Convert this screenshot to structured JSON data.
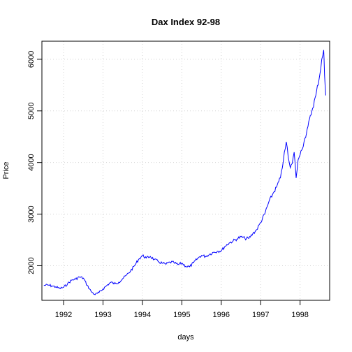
{
  "chart_data": {
    "type": "line",
    "title": "Dax Index 92-98",
    "xlabel": "days",
    "ylabel": "Price",
    "xlim": [
      1991.45,
      1998.75
    ],
    "ylim": [
      1330,
      6350
    ],
    "x_ticks": [
      1992,
      1993,
      1994,
      1995,
      1996,
      1997,
      1998
    ],
    "x_tick_labels": [
      "1992",
      "1993",
      "1994",
      "1995",
      "1996",
      "1997",
      "1998"
    ],
    "y_ticks": [
      2000,
      3000,
      4000,
      5000,
      6000
    ],
    "y_tick_labels": [
      "2000",
      "3000",
      "4000",
      "5000",
      "6000"
    ],
    "grid": true,
    "colors": {
      "line": "#0000ff",
      "grid": "#d3d3d3",
      "axis": "#000000"
    },
    "series": [
      {
        "x": [
          1991.5,
          1991.6,
          1991.7,
          1991.8,
          1991.9,
          1992.0,
          1992.1,
          1992.2,
          1992.3,
          1992.4,
          1992.5,
          1992.6,
          1992.7,
          1992.8,
          1992.9,
          1993.0,
          1993.1,
          1993.2,
          1993.3,
          1993.4,
          1993.5,
          1993.6,
          1993.7,
          1993.8,
          1993.9,
          1994.0,
          1994.1,
          1994.2,
          1994.3,
          1994.4,
          1994.5,
          1994.6,
          1994.7,
          1994.8,
          1994.9,
          1995.0,
          1995.1,
          1995.2,
          1995.3,
          1995.4,
          1995.5,
          1995.6,
          1995.7,
          1995.8,
          1995.9,
          1996.0,
          1996.1,
          1996.2,
          1996.3,
          1996.4,
          1996.5,
          1996.6,
          1996.7,
          1996.8,
          1996.9,
          1997.0,
          1997.1,
          1997.2,
          1997.3,
          1997.4,
          1997.5,
          1997.55,
          1997.6,
          1997.65,
          1997.7,
          1997.75,
          1997.8,
          1997.85,
          1997.9,
          1997.95,
          1998.0,
          1998.1,
          1998.2,
          1998.3,
          1998.4,
          1998.5,
          1998.55,
          1998.6,
          1998.62,
          1998.65
        ],
        "y": [
          1620,
          1625,
          1610,
          1590,
          1560,
          1580,
          1650,
          1720,
          1740,
          1780,
          1760,
          1620,
          1500,
          1440,
          1480,
          1550,
          1620,
          1680,
          1650,
          1680,
          1750,
          1820,
          1900,
          2000,
          2120,
          2200,
          2150,
          2180,
          2120,
          2080,
          2050,
          2030,
          2070,
          2060,
          2020,
          2050,
          1990,
          1980,
          2060,
          2140,
          2200,
          2180,
          2220,
          2260,
          2280,
          2290,
          2380,
          2440,
          2480,
          2520,
          2560,
          2530,
          2530,
          2620,
          2700,
          2840,
          3000,
          3220,
          3380,
          3520,
          3700,
          3900,
          4200,
          4400,
          4100,
          3900,
          3980,
          4200,
          3700,
          4050,
          4150,
          4400,
          4700,
          5000,
          5300,
          5700,
          6000,
          6180,
          5700,
          5300
        ]
      }
    ]
  }
}
